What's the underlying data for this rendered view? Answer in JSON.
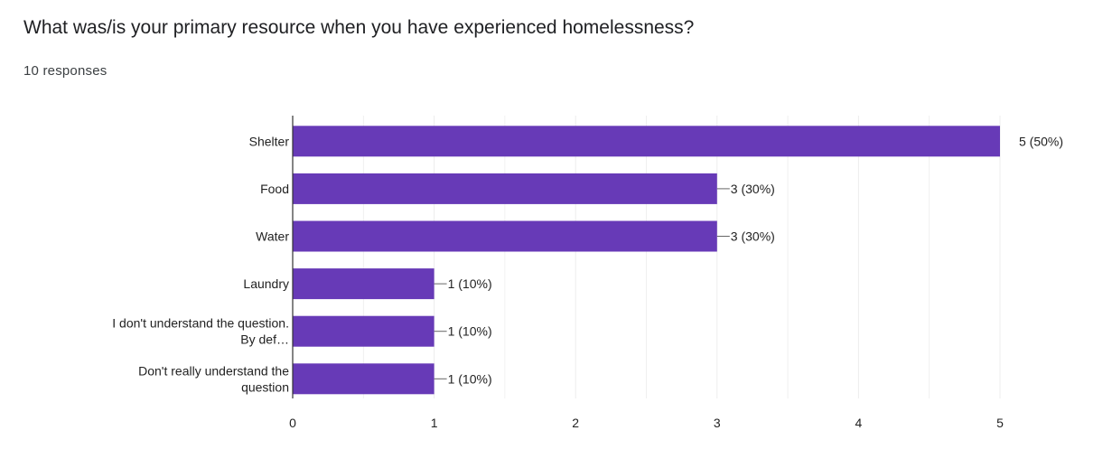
{
  "header": {
    "question": "What was/is your primary resource when you have experienced homelessness?",
    "responses": "10 responses"
  },
  "colors": {
    "bar": "#673ab7",
    "axis": "#333333",
    "grid": "#ececec",
    "label": "#222222"
  },
  "chart_data": {
    "type": "bar",
    "orientation": "horizontal",
    "categories": [
      [
        "Shelter"
      ],
      [
        "Food"
      ],
      [
        "Water"
      ],
      [
        "Laundry"
      ],
      [
        "I don't understand the question.",
        "By def…"
      ],
      [
        "Don't really understand the",
        "question"
      ]
    ],
    "values": [
      5,
      3,
      3,
      1,
      1,
      1
    ],
    "data_labels": [
      "5 (50%)",
      "3 (30%)",
      "3 (30%)",
      "1 (10%)",
      "1 (10%)",
      "1 (10%)"
    ],
    "xlim": [
      0,
      5
    ],
    "xticks": [
      "0",
      "1",
      "2",
      "3",
      "4",
      "5"
    ],
    "grid": true
  }
}
